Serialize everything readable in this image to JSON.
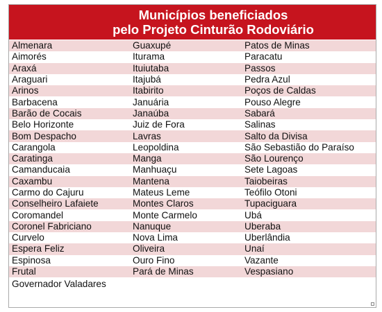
{
  "header": {
    "line1": "Municípios beneficiados",
    "line2": "pelo Projeto Cinturão Rodoviário"
  },
  "rows": [
    [
      "Almenara",
      "Guaxupé",
      "Patos de Minas"
    ],
    [
      "Aimorés",
      "Iturama",
      "Paracatu"
    ],
    [
      "Araxá",
      "Ituiutaba",
      "Passos"
    ],
    [
      "Araguari",
      "Itajubá",
      "Pedra Azul"
    ],
    [
      "Arinos",
      "Itabirito",
      "Poços de Caldas"
    ],
    [
      "Barbacena",
      "Januária",
      "Pouso Alegre"
    ],
    [
      "Barão de Cocais",
      "Janaúba",
      "Sabará"
    ],
    [
      "Belo Horizonte",
      "Juiz de Fora",
      "Salinas"
    ],
    [
      "Bom Despacho",
      "Lavras",
      "Salto da Divisa"
    ],
    [
      "Carangola",
      "Leopoldina",
      "São Sebastião do Paraíso"
    ],
    [
      "Caratinga",
      "Manga",
      "São Lourenço"
    ],
    [
      "Camanducaia",
      "Manhuaçu",
      "Sete Lagoas"
    ],
    [
      "Caxambu",
      "Mantena",
      "Taiobeiras"
    ],
    [
      "Carmo do Cajuru",
      "Mateus Leme",
      "Teófilo Otoni"
    ],
    [
      "Conselheiro Lafaiete",
      "Montes Claros",
      "Tupaciguara"
    ],
    [
      "Coromandel",
      "Monte Carmelo",
      "Ubá"
    ],
    [
      "Coronel Fabriciano",
      "Nanuque",
      "Uberaba"
    ],
    [
      "Curvelo",
      "Nova Lima",
      "Uberlândia"
    ],
    [
      "Espera Feliz",
      "Oliveira",
      "Unaí"
    ],
    [
      "Espinosa",
      "Ouro Fino",
      "Vazante"
    ],
    [
      "Frutal",
      "Pará de Minas",
      "Vespasiano"
    ],
    [
      "Governador Valadares",
      "",
      ""
    ]
  ],
  "colors": {
    "header_bg": "#c6141e",
    "band": "#f2d7d8"
  }
}
